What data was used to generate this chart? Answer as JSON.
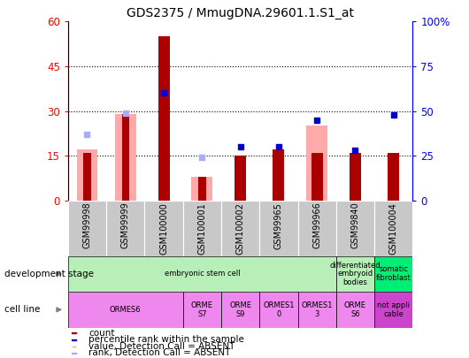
{
  "title": "GDS2375 / MmugDNA.29601.1.S1_at",
  "samples": [
    "GSM99998",
    "GSM99999",
    "GSM100000",
    "GSM100001",
    "GSM100002",
    "GSM99965",
    "GSM99966",
    "GSM99840",
    "GSM100004"
  ],
  "count_values": [
    16,
    29,
    55,
    8,
    15,
    17,
    16,
    16,
    16
  ],
  "count_absent": [
    true,
    true,
    false,
    true,
    false,
    false,
    false,
    false,
    false
  ],
  "pink_bar_values": [
    17,
    29,
    0,
    8,
    0,
    0,
    25,
    0,
    0
  ],
  "rank_values_pct": [
    37,
    49,
    60,
    24,
    30,
    30,
    45,
    28,
    48
  ],
  "rank_absent": [
    true,
    true,
    false,
    true,
    false,
    false,
    false,
    false,
    false
  ],
  "left_ylim": [
    0,
    60
  ],
  "left_yticks": [
    0,
    15,
    30,
    45,
    60
  ],
  "right_yticks": [
    0,
    25,
    50,
    75,
    100
  ],
  "bar_color_dark_red": "#AA0000",
  "bar_color_pink": "#FFAAAA",
  "dot_color_dark_blue": "#0000CC",
  "dot_color_light_blue": "#AAAAFF",
  "dev_spans": [
    [
      0,
      7,
      "embryonic stem cell",
      "#B8EEB8"
    ],
    [
      7,
      8,
      "differentiated\nembryoid\nbodies",
      "#B8EEB8"
    ],
    [
      8,
      9,
      "somatic\nfibroblast",
      "#00EE76"
    ]
  ],
  "cell_spans": [
    [
      0,
      3,
      "ORMES6",
      "#EE88EE"
    ],
    [
      3,
      4,
      "ORME\nS7",
      "#EE88EE"
    ],
    [
      4,
      5,
      "ORME\nS9",
      "#EE88EE"
    ],
    [
      5,
      6,
      "ORMES1\n0",
      "#EE88EE"
    ],
    [
      6,
      7,
      "ORMES1\n3",
      "#EE88EE"
    ],
    [
      7,
      8,
      "ORME\nS6",
      "#EE88EE"
    ],
    [
      8,
      9,
      "not appli\ncable",
      "#CC44CC"
    ]
  ],
  "background_color": "#FFFFFF"
}
